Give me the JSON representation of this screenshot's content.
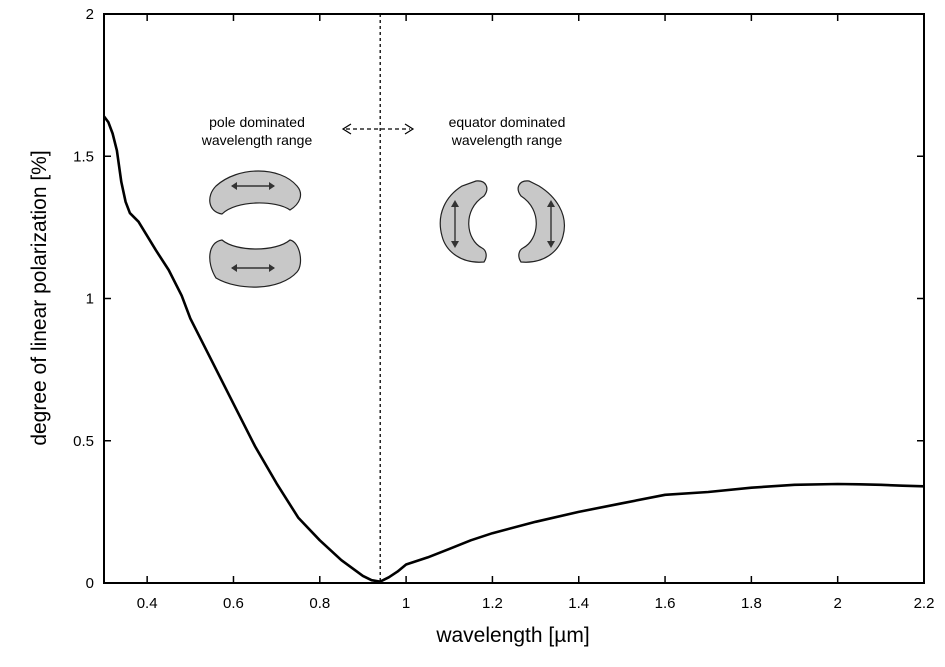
{
  "chart_data": {
    "type": "line",
    "title": "",
    "xlabel": "wavelength [µm]",
    "ylabel": "degree of linear polarization [%]",
    "xlim": [
      0.3,
      2.2
    ],
    "ylim": [
      0,
      2
    ],
    "xticks": [
      0.4,
      0.6,
      0.8,
      1,
      1.2,
      1.4,
      1.6,
      1.8,
      2,
      2.2
    ],
    "xtick_labels": [
      "0.4",
      "0.6",
      "0.8",
      "1",
      "1.2",
      "1.4",
      "1.6",
      "1.8",
      "2",
      "2.2"
    ],
    "yticks": [
      0,
      0.5,
      1,
      1.5,
      2
    ],
    "ytick_labels": [
      "0",
      "0.5",
      "1",
      "1.5",
      "2"
    ],
    "vertical_line": {
      "x": 0.94,
      "style": "dotted"
    },
    "series": [
      {
        "name": "degree of linear polarization",
        "x": [
          0.3,
          0.31,
          0.32,
          0.33,
          0.34,
          0.35,
          0.36,
          0.38,
          0.4,
          0.42,
          0.45,
          0.48,
          0.5,
          0.55,
          0.6,
          0.65,
          0.7,
          0.75,
          0.8,
          0.85,
          0.9,
          0.92,
          0.94,
          0.96,
          0.98,
          1.0,
          1.05,
          1.1,
          1.15,
          1.2,
          1.3,
          1.4,
          1.5,
          1.6,
          1.7,
          1.8,
          1.9,
          2.0,
          2.05,
          2.1,
          2.15,
          2.2
        ],
        "y": [
          1.64,
          1.62,
          1.58,
          1.52,
          1.41,
          1.34,
          1.3,
          1.27,
          1.22,
          1.17,
          1.1,
          1.01,
          0.93,
          0.78,
          0.63,
          0.48,
          0.35,
          0.23,
          0.15,
          0.08,
          0.025,
          0.01,
          0.005,
          0.02,
          0.04,
          0.065,
          0.09,
          0.12,
          0.15,
          0.175,
          0.215,
          0.25,
          0.28,
          0.31,
          0.32,
          0.335,
          0.345,
          0.348,
          0.347,
          0.345,
          0.342,
          0.34
        ]
      }
    ],
    "annotations": {
      "left_line1": "pole dominated",
      "left_line2": "wavelength range",
      "right_line1": "equator dominated",
      "right_line2": "wavelength range"
    }
  }
}
